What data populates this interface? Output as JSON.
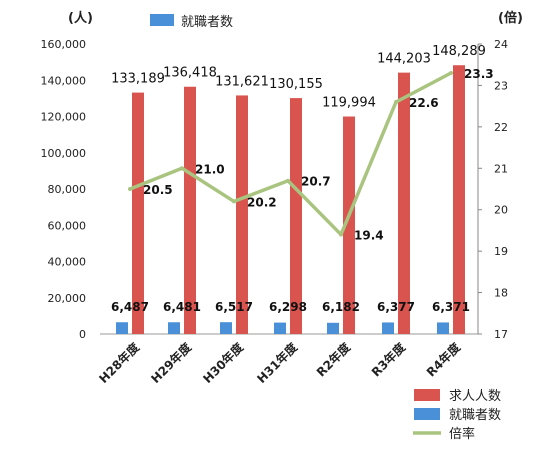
{
  "chart_data": {
    "type": "bar",
    "units": {
      "left": "(人)",
      "right": "(倍)"
    },
    "categories": [
      "H28年度",
      "H29年度",
      "H30年度",
      "H31年度",
      "R2年度",
      "R3年度",
      "R4年度"
    ],
    "series": [
      {
        "name": "求人人数",
        "type": "bar",
        "axis": "left",
        "color": "#d9534f",
        "values": [
          133189,
          136418,
          131621,
          130155,
          119994,
          144203,
          148289
        ],
        "labels": [
          "133,189",
          "136,418",
          "131,621",
          "130,155",
          "119,994",
          "144,203",
          "148,289"
        ]
      },
      {
        "name": "就職者数",
        "type": "bar",
        "axis": "left",
        "color": "#4a90d9",
        "values": [
          6487,
          6481,
          6517,
          6298,
          6182,
          6377,
          6371
        ],
        "labels": [
          "6,487",
          "6,481",
          "6,517",
          "6,298",
          "6,182",
          "6,377",
          "6,371"
        ]
      },
      {
        "name": "倍率",
        "type": "line",
        "axis": "right",
        "color": "#a9c47f",
        "values": [
          20.5,
          21.0,
          20.2,
          20.7,
          19.4,
          22.6,
          23.3
        ],
        "labels": [
          "20.5",
          "21.0",
          "20.2",
          "20.7",
          "19.4",
          "22.6",
          "23.3"
        ]
      }
    ],
    "y_left": {
      "min": 0,
      "max": 160000,
      "ticks": [
        "0",
        "20,000",
        "40,000",
        "60,000",
        "80,000",
        "100,000",
        "120,000",
        "140,000",
        "160,000"
      ]
    },
    "y_right": {
      "min": 17,
      "max": 24,
      "ticks": [
        "17",
        "18",
        "19",
        "20",
        "21",
        "22",
        "23",
        "24"
      ]
    },
    "grid": false,
    "legend": {
      "top": [
        "就職者数"
      ],
      "bottom_right": [
        "求人人数",
        "就職者数",
        "倍率"
      ]
    }
  }
}
